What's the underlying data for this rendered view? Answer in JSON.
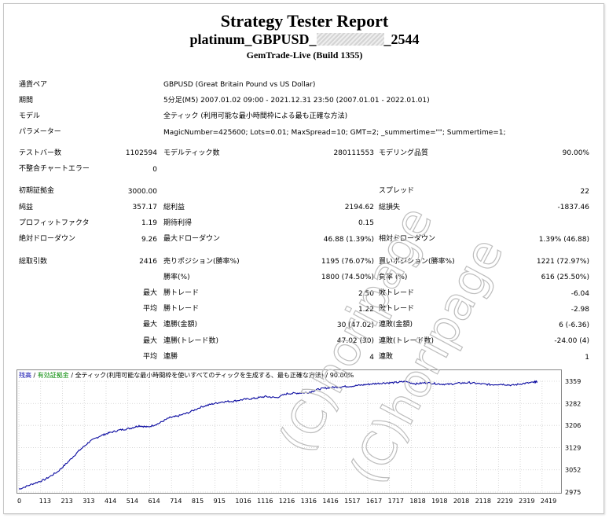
{
  "header": {
    "title": "Strategy Tester Report",
    "ea_prefix": "platinum_GBPUSD_",
    "ea_suffix": "_2544",
    "server": "GemTrade-Live (Build 1355)"
  },
  "info": {
    "symbol_label": "通貨ペア",
    "symbol_value": "GBPUSD (Great Britain Pound vs US Dollar)",
    "period_label": "期間",
    "period_value": "5分足(M5) 2007.01.02 09:00 - 2021.12.31 23:50 (2007.01.01 - 2022.01.01)",
    "model_label": "モデル",
    "model_value": "全ティック (利用可能な最小時間枠による最も正確な方法)",
    "params_label": "パラメーター",
    "params_value": "MagicNumber=425600; Lots=0.01; MaxSpread=10; GMT=2; _summertime=\"\"; Summertime=1;"
  },
  "stats": {
    "bars_label": "テストバー数",
    "bars_value": "1102594",
    "ticks_label": "モデルティック数",
    "ticks_value": "280111553",
    "quality_label": "モデリング品質",
    "quality_value": "90.00%",
    "mismatch_label": "不整合チャートエラー",
    "mismatch_value": "0",
    "deposit_label": "初期証拠金",
    "deposit_value": "3000.00",
    "spread_label": "スプレッド",
    "spread_value": "22",
    "net_label": "純益",
    "net_value": "357.17",
    "gross_profit_label": "総利益",
    "gross_profit_value": "2194.62",
    "gross_loss_label": "総損失",
    "gross_loss_value": "-1837.46",
    "pf_label": "プロフィットファクタ",
    "pf_value": "1.19",
    "expected_label": "期待利得",
    "expected_value": "0.15",
    "abs_dd_label": "絶対ドローダウン",
    "abs_dd_value": "9.26",
    "max_dd_label": "最大ドローダウン",
    "max_dd_value": "46.88 (1.39%)",
    "rel_dd_label": "相対ドローダウン",
    "rel_dd_value": "1.39% (46.88)",
    "total_trades_label": "総取引数",
    "total_trades_value": "2416",
    "short_label": "売りポジション(勝率%)",
    "short_value": "1195 (76.07%)",
    "long_label": "買いポジション(勝率%)",
    "long_value": "1221 (72.97%)",
    "win_label": "勝率(%)",
    "win_value": "1800 (74.50%)",
    "loss_label": "負率 (%)",
    "loss_value": "616 (25.50%)",
    "max_word": "最大",
    "avg_word": "平均",
    "largest_win_label": "勝トレード",
    "largest_win_value": "2.50",
    "largest_loss_label": "敗トレード",
    "largest_loss_value": "-6.04",
    "avg_win_label": "勝トレード",
    "avg_win_value": "1.22",
    "avg_loss_label": "敗トレード",
    "avg_loss_value": "-2.98",
    "max_consec_wins_money_label": "連勝(金額)",
    "max_consec_wins_money_value": "30 (47.02)",
    "max_consec_losses_money_label": "連敗(金額)",
    "max_consec_losses_money_value": "6 (-6.36)",
    "max_consec_profit_label": "連勝(トレード数)",
    "max_consec_profit_value": "47.02 (30)",
    "max_consec_loss_label": "連敗(トレード数)",
    "max_consec_loss_value": "-24.00 (4)",
    "avg_consec_wins_label": "連勝",
    "avg_consec_wins_value": "4",
    "avg_consec_losses_label": "連敗",
    "avg_consec_losses_value": "1"
  },
  "watermark": "(C)horipage",
  "chart_data": {
    "type": "line",
    "legend": {
      "balance": "残高",
      "equity": "有効証拠金",
      "tick_model": "全ティック(利用可能な最小時間枠を使いすべてのティックを生成する、最も正確な方法)",
      "quality": "90.00%"
    },
    "x_ticks": [
      "0",
      "113",
      "213",
      "313",
      "414",
      "514",
      "614",
      "714",
      "815",
      "915",
      "1016",
      "1116",
      "1216",
      "1316",
      "1416",
      "1517",
      "1617",
      "1717",
      "1818",
      "1918",
      "2018",
      "2118",
      "2219",
      "2319",
      "2419"
    ],
    "y_ticks": [
      "3359",
      "3282",
      "3206",
      "3129",
      "3052",
      "2975"
    ],
    "xlim": [
      0,
      2520
    ],
    "ylim": [
      2975,
      3359
    ],
    "series": [
      {
        "color": "#0a0aa0",
        "x": [
          0,
          60,
          120,
          180,
          230,
          280,
          330,
          380,
          420,
          470,
          520,
          560,
          600,
          650,
          700,
          740,
          790,
          850,
          900,
          950,
          1000,
          1050,
          1100,
          1150,
          1200,
          1250,
          1300,
          1350,
          1400,
          1450,
          1500,
          1550,
          1600,
          1650,
          1700,
          1750,
          1800,
          1850,
          1900,
          1950,
          2000,
          2050,
          2100,
          2150,
          2200,
          2250,
          2300,
          2350,
          2400,
          2416
        ],
        "y": [
          2985,
          3002,
          3018,
          3045,
          3080,
          3118,
          3150,
          3170,
          3180,
          3190,
          3196,
          3205,
          3200,
          3212,
          3232,
          3238,
          3250,
          3270,
          3280,
          3288,
          3290,
          3296,
          3300,
          3306,
          3302,
          3316,
          3318,
          3320,
          3332,
          3337,
          3340,
          3342,
          3346,
          3350,
          3353,
          3354,
          3358,
          3350,
          3354,
          3350,
          3348,
          3352,
          3354,
          3350,
          3347,
          3349,
          3345,
          3351,
          3355,
          3358
        ]
      }
    ]
  }
}
